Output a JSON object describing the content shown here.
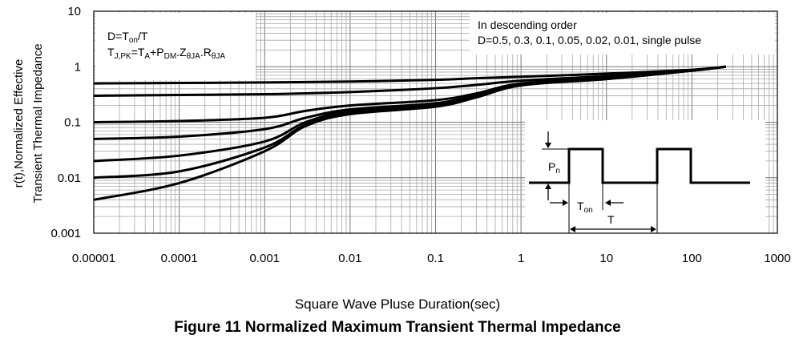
{
  "chart_data": {
    "type": "line",
    "x_scale": "log",
    "y_scale": "log",
    "xlim": [
      1e-05,
      1000
    ],
    "ylim": [
      0.001,
      10
    ],
    "x_ticks": [
      "0.00001",
      "0.0001",
      "0.001",
      "0.01",
      "0.1",
      "1",
      "10",
      "100",
      "1000"
    ],
    "y_ticks": [
      "0.001",
      "0.01",
      "0.1",
      "1",
      "10"
    ],
    "xlabel": "Square Wave Pluse Duration(sec)",
    "ylabel_line1": "r(t),Normalized Effective",
    "ylabel_line2": "Transient Thermal Impedance",
    "title": "Figure 11 Normalized Maximum Transient Thermal Impedance",
    "grid": true,
    "series": [
      {
        "values": [
          [
            1e-05,
            0.5
          ],
          [
            0.0001,
            0.51
          ],
          [
            0.001,
            0.52
          ],
          [
            0.01,
            0.54
          ],
          [
            0.1,
            0.58
          ],
          [
            0.3,
            0.62
          ],
          [
            1,
            0.66
          ],
          [
            10,
            0.75
          ],
          [
            100,
            0.88
          ],
          [
            250,
            1.0
          ]
        ]
      },
      {
        "values": [
          [
            1e-05,
            0.3
          ],
          [
            0.0001,
            0.31
          ],
          [
            0.001,
            0.32
          ],
          [
            0.01,
            0.35
          ],
          [
            0.1,
            0.41
          ],
          [
            0.3,
            0.47
          ],
          [
            1,
            0.56
          ],
          [
            10,
            0.68
          ],
          [
            100,
            0.87
          ],
          [
            250,
            1.0
          ]
        ]
      },
      {
        "values": [
          [
            1e-05,
            0.1
          ],
          [
            0.0001,
            0.105
          ],
          [
            0.001,
            0.12
          ],
          [
            0.003,
            0.16
          ],
          [
            0.01,
            0.2
          ],
          [
            0.1,
            0.25
          ],
          [
            0.3,
            0.33
          ],
          [
            1,
            0.5
          ],
          [
            10,
            0.63
          ],
          [
            100,
            0.86
          ],
          [
            250,
            1.0
          ]
        ]
      },
      {
        "values": [
          [
            1e-05,
            0.05
          ],
          [
            0.0001,
            0.055
          ],
          [
            0.001,
            0.075
          ],
          [
            0.003,
            0.12
          ],
          [
            0.01,
            0.17
          ],
          [
            0.1,
            0.22
          ],
          [
            0.3,
            0.31
          ],
          [
            1,
            0.49
          ],
          [
            10,
            0.62
          ],
          [
            100,
            0.86
          ],
          [
            250,
            1.0
          ]
        ]
      },
      {
        "values": [
          [
            1e-05,
            0.02
          ],
          [
            0.0001,
            0.025
          ],
          [
            0.001,
            0.045
          ],
          [
            0.003,
            0.1
          ],
          [
            0.01,
            0.16
          ],
          [
            0.1,
            0.21
          ],
          [
            0.3,
            0.3
          ],
          [
            1,
            0.48
          ],
          [
            10,
            0.61
          ],
          [
            100,
            0.85
          ],
          [
            250,
            1.0
          ]
        ]
      },
      {
        "values": [
          [
            1e-05,
            0.01
          ],
          [
            0.0001,
            0.013
          ],
          [
            0.001,
            0.035
          ],
          [
            0.003,
            0.09
          ],
          [
            0.01,
            0.15
          ],
          [
            0.1,
            0.2
          ],
          [
            0.3,
            0.29
          ],
          [
            1,
            0.47
          ],
          [
            10,
            0.6
          ],
          [
            100,
            0.85
          ],
          [
            250,
            1.0
          ]
        ]
      },
      {
        "values": [
          [
            1e-05,
            0.004
          ],
          [
            0.0001,
            0.008
          ],
          [
            0.001,
            0.03
          ],
          [
            0.003,
            0.085
          ],
          [
            0.01,
            0.14
          ],
          [
            0.1,
            0.19
          ],
          [
            0.3,
            0.28
          ],
          [
            1,
            0.46
          ],
          [
            10,
            0.6
          ],
          [
            100,
            0.85
          ],
          [
            250,
            1.0
          ]
        ]
      }
    ],
    "annotations": {
      "box_left": {
        "line1": {
          "a": "D=T",
          "sub": "on",
          "b": "/T"
        },
        "line2": {
          "a": "T",
          "sub1": "J,PK",
          "b": "=T",
          "sub2": "A",
          "c": "+P",
          "sub3": "DM",
          "d": ".Z",
          "sub4": "θJA",
          "e": ".R",
          "sub5": "θJA"
        }
      },
      "box_right": {
        "line1": "In descending order",
        "line2": "D=0.5, 0.3, 0.1, 0.05, 0.02, 0.01, single pulse"
      },
      "pulse": {
        "pn": "P",
        "pn_sub": "n",
        "ton": "T",
        "ton_sub": "on",
        "t": "T"
      }
    }
  }
}
